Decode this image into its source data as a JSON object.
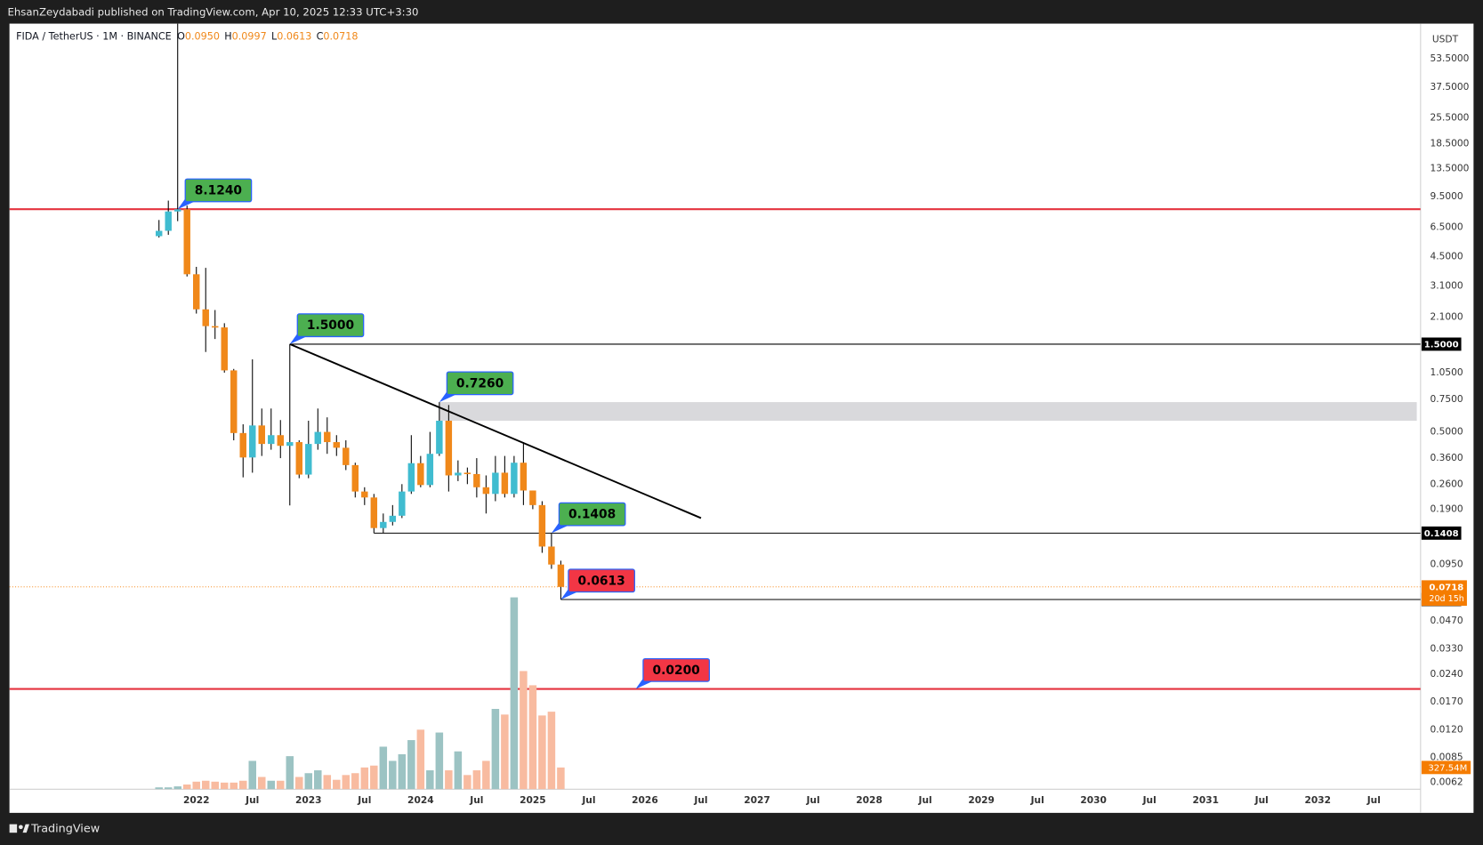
{
  "header": {
    "publisher": "EhsanZeydabadi published on TradingView.com, Apr 10, 2025 12:33 UTC+3:30",
    "brand": "TradingView"
  },
  "chart_data": {
    "type": "candlestick",
    "legend": {
      "symbol": "FIDA / TetherUS · 1M · BINANCE",
      "ohlc": [
        {
          "key": "O",
          "value": "0.0950"
        },
        {
          "key": "H",
          "value": "0.0997"
        },
        {
          "key": "L",
          "value": "0.0613"
        },
        {
          "key": "C",
          "value": "0.0718"
        }
      ]
    },
    "currency": "USDT",
    "log_scale": true,
    "grid": false,
    "up_color": "#40bcd0",
    "down_color": "#f0881a",
    "volume_up_color": "#9cc3c3",
    "volume_down_color": "#f8bba0",
    "x": [
      "2021-09",
      "2021-10",
      "2021-11",
      "2021-12",
      "2022-01",
      "2022-02",
      "2022-03",
      "2022-04",
      "2022-05",
      "2022-06",
      "2022-07",
      "2022-08",
      "2022-09",
      "2022-10",
      "2022-11",
      "2022-12",
      "2023-01",
      "2023-02",
      "2023-03",
      "2023-04",
      "2023-05",
      "2023-06",
      "2023-07",
      "2023-08",
      "2023-09",
      "2023-10",
      "2023-11",
      "2023-12",
      "2024-01",
      "2024-02",
      "2024-03",
      "2024-04",
      "2024-05",
      "2024-06",
      "2024-07",
      "2024-08",
      "2024-09",
      "2024-10",
      "2024-11",
      "2024-12",
      "2025-01",
      "2025-02",
      "2025-03",
      "2025-04"
    ],
    "open": [
      5.8,
      6.2,
      7.9,
      8.12,
      3.6,
      2.32,
      1.88,
      1.85,
      1.08,
      0.493,
      0.363,
      0.542,
      0.43,
      0.48,
      0.42,
      0.44,
      0.293,
      0.43,
      0.5,
      0.44,
      0.41,
      0.33,
      0.237,
      0.22,
      0.15,
      0.162,
      0.175,
      0.237,
      0.338,
      0.257,
      0.38,
      0.575,
      0.29,
      0.3,
      0.295,
      0.25,
      0.23,
      0.3,
      0.23,
      0.34,
      0.24,
      0.2,
      0.119,
      0.095
    ],
    "high": [
      7.1,
      9.05,
      90,
      8.5,
      3.95,
      3.9,
      2.3,
      1.95,
      1.1,
      0.55,
      1.24,
      0.67,
      0.67,
      0.58,
      1.5,
      0.45,
      0.575,
      0.67,
      0.6,
      0.48,
      0.45,
      0.34,
      0.25,
      0.23,
      0.18,
      0.2,
      0.26,
      0.48,
      0.37,
      0.5,
      0.726,
      0.7,
      0.35,
      0.32,
      0.36,
      0.29,
      0.37,
      0.37,
      0.37,
      0.44,
      0.24,
      0.21,
      0.14,
      0.0997
    ],
    "low": [
      5.7,
      5.9,
      7.0,
      3.5,
      2.2,
      1.36,
      1.6,
      1.05,
      0.45,
      0.283,
      0.3,
      0.37,
      0.4,
      0.36,
      0.199,
      0.28,
      0.28,
      0.4,
      0.38,
      0.37,
      0.31,
      0.22,
      0.2,
      0.1408,
      0.1408,
      0.155,
      0.17,
      0.23,
      0.25,
      0.25,
      0.37,
      0.237,
      0.27,
      0.26,
      0.22,
      0.18,
      0.21,
      0.22,
      0.22,
      0.2,
      0.19,
      0.11,
      0.09,
      0.0613
    ],
    "close": [
      6.2,
      7.9,
      8.12,
      3.6,
      2.32,
      1.88,
      1.85,
      1.08,
      0.493,
      0.363,
      0.542,
      0.43,
      0.48,
      0.42,
      0.44,
      0.293,
      0.43,
      0.5,
      0.44,
      0.41,
      0.33,
      0.237,
      0.22,
      0.15,
      0.162,
      0.175,
      0.237,
      0.338,
      0.257,
      0.38,
      0.575,
      0.29,
      0.3,
      0.295,
      0.25,
      0.23,
      0.3,
      0.23,
      0.34,
      0.24,
      0.2,
      0.119,
      0.095,
      0.0718
    ],
    "volume": [
      28000000,
      28000000,
      43000000,
      71000000,
      114000000,
      128000000,
      114000000,
      100000000,
      100000000,
      128000000,
      427000000,
      185000000,
      128000000,
      128000000,
      498000000,
      185000000,
      242000000,
      285000000,
      214000000,
      142000000,
      214000000,
      242000000,
      328000000,
      356000000,
      641000000,
      427000000,
      527000000,
      740000000,
      897000000,
      285000000,
      854000000,
      285000000,
      570000000,
      214000000,
      285000000,
      427000000,
      1210000000,
      1125000000,
      2890000000,
      1780000000,
      1566000000,
      1111000000,
      1168000000,
      327540000
    ],
    "last_volume_label": "327.54M",
    "xlim": [
      "2020-05",
      "2032-12"
    ],
    "xticks": [
      {
        "value": "2022-01",
        "label": "2022"
      },
      {
        "value": "2022-07",
        "label": "Jul"
      },
      {
        "value": "2023-01",
        "label": "2023"
      },
      {
        "value": "2023-07",
        "label": "Jul"
      },
      {
        "value": "2024-01",
        "label": "2024"
      },
      {
        "value": "2024-07",
        "label": "Jul"
      },
      {
        "value": "2025-01",
        "label": "2025"
      },
      {
        "value": "2025-07",
        "label": "Jul"
      },
      {
        "value": "2026-01",
        "label": "2026"
      },
      {
        "value": "2026-07",
        "label": "Jul"
      },
      {
        "value": "2027-01",
        "label": "2027"
      },
      {
        "value": "2027-07",
        "label": "Jul"
      },
      {
        "value": "2028-01",
        "label": "2028"
      },
      {
        "value": "2028-07",
        "label": "Jul"
      },
      {
        "value": "2029-01",
        "label": "2029"
      },
      {
        "value": "2029-07",
        "label": "Jul"
      },
      {
        "value": "2030-01",
        "label": "2030"
      },
      {
        "value": "2030-07",
        "label": "Jul"
      },
      {
        "value": "2031-01",
        "label": "2031"
      },
      {
        "value": "2031-07",
        "label": "Jul"
      },
      {
        "value": "2032-01",
        "label": "2032"
      },
      {
        "value": "2032-07",
        "label": "Jul"
      }
    ],
    "ylim": [
      0.0057,
      83
    ],
    "yticks": [
      {
        "value": 53.5,
        "label": "53.5000"
      },
      {
        "value": 37.5,
        "label": "37.5000"
      },
      {
        "value": 25.5,
        "label": "25.5000"
      },
      {
        "value": 18.5,
        "label": "18.5000"
      },
      {
        "value": 13.5,
        "label": "13.5000"
      },
      {
        "value": 9.5,
        "label": "9.5000"
      },
      {
        "value": 6.5,
        "label": "6.5000"
      },
      {
        "value": 4.5,
        "label": "4.5000"
      },
      {
        "value": 3.1,
        "label": "3.1000"
      },
      {
        "value": 2.1,
        "label": "2.1000"
      },
      {
        "value": 1.05,
        "label": "1.0500"
      },
      {
        "value": 0.75,
        "label": "0.7500"
      },
      {
        "value": 0.5,
        "label": "0.5000"
      },
      {
        "value": 0.36,
        "label": "0.3600"
      },
      {
        "value": 0.26,
        "label": "0.2600"
      },
      {
        "value": 0.19,
        "label": "0.1900"
      },
      {
        "value": 0.095,
        "label": "0.0950"
      },
      {
        "value": 0.047,
        "label": "0.0470"
      },
      {
        "value": 0.033,
        "label": "0.0330"
      },
      {
        "value": 0.024,
        "label": "0.0240"
      },
      {
        "value": 0.017,
        "label": "0.0170"
      },
      {
        "value": 0.012,
        "label": "0.0120"
      },
      {
        "value": 0.0085,
        "label": "0.0085"
      },
      {
        "value": 0.0062,
        "label": "0.0062"
      }
    ],
    "levels": [
      {
        "value": 8.124,
        "color": "#e5323e"
      },
      {
        "value": 0.02,
        "color": "#e5323e"
      },
      {
        "value": 1.5,
        "x": "2022-11",
        "color": "#000000",
        "label": "1.5000"
      },
      {
        "value": 0.1408,
        "x": "2023-08",
        "color": "#000000",
        "label": "0.1408"
      },
      {
        "value": 0.0613,
        "x": "2025-04",
        "color": "#000000",
        "label": "0.0613"
      }
    ],
    "current_price": {
      "value": 0.0718,
      "label": "0.0718",
      "countdown": "20d 15h",
      "color": "#f57c00"
    },
    "trendline": {
      "points": [
        {
          "x": "2022-11",
          "value": 1.5
        },
        {
          "x": "2026-07",
          "value": 0.17
        }
      ],
      "color": "#000000"
    },
    "zone": {
      "x": "2024-03",
      "low": 0.575,
      "high": 0.726,
      "color": "#d9d9dc"
    },
    "annotations": [
      {
        "label": "8.1240",
        "value": 8.124,
        "x": "2021-11",
        "color": "#4caf50"
      },
      {
        "label": "1.5000",
        "value": 1.5,
        "x": "2022-11",
        "color": "#4caf50"
      },
      {
        "label": "0.7260",
        "value": 0.726,
        "x": "2024-03",
        "color": "#4caf50"
      },
      {
        "label": "0.1408",
        "value": 0.1408,
        "x": "2025-03",
        "color": "#4caf50"
      },
      {
        "label": "0.0613",
        "value": 0.0613,
        "x": "2025-04",
        "color": "#f23645"
      },
      {
        "label": "0.0200",
        "value": 0.02,
        "x": "2025-12",
        "color": "#f23645"
      }
    ]
  }
}
